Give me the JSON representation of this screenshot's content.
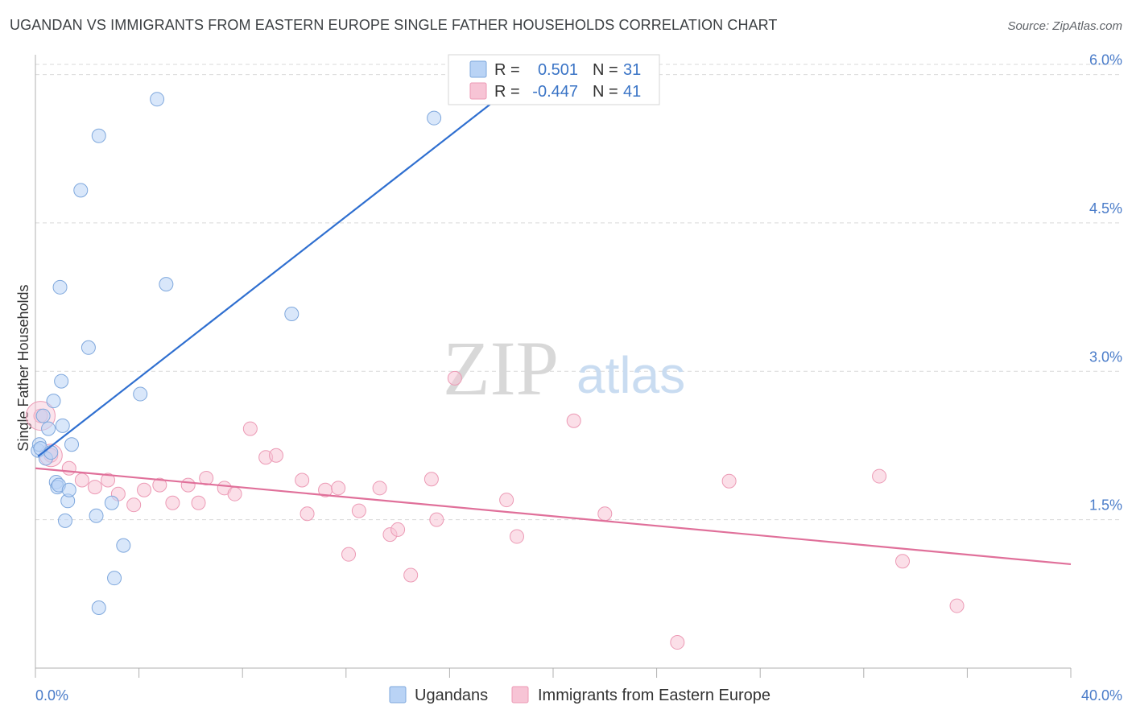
{
  "title": "UGANDAN VS IMMIGRANTS FROM EASTERN EUROPE SINGLE FATHER HOUSEHOLDS CORRELATION CHART",
  "source": "Source: ZipAtlas.com",
  "watermark": {
    "zip": "ZIP",
    "atlas": "atlas"
  },
  "colors": {
    "blue_fill": "#b9d3f5",
    "blue_stroke": "#7fa8dd",
    "blue_line": "#2f6fd0",
    "pink_fill": "#f7c4d5",
    "pink_stroke": "#ec9ab5",
    "pink_line": "#e0709a",
    "grid": "#d9d9d9",
    "axis": "#b0b0b0",
    "value_text": "#3a74c6"
  },
  "legend": {
    "rows": [
      {
        "r_label": "R =",
        "r_value": "0.501",
        "n_label": "N =",
        "n_value": "31"
      },
      {
        "r_label": "R =",
        "r_value": "-0.447",
        "n_label": "N =",
        "n_value": "41"
      }
    ]
  },
  "chart_data": {
    "type": "scatter",
    "title": "UGANDAN VS IMMIGRANTS FROM EASTERN EUROPE SINGLE FATHER HOUSEHOLDS CORRELATION CHART",
    "xlabel": "",
    "ylabel": "Single Father Households",
    "xlim": [
      0,
      40
    ],
    "ylim": [
      0.0,
      6.2
    ],
    "x_tick_labels": [
      "0.0%",
      "40.0%"
    ],
    "y_ticks": [
      {
        "value": 1.5,
        "label": "1.5%"
      },
      {
        "value": 3.0,
        "label": "3.0%"
      },
      {
        "value": 4.5,
        "label": "4.5%"
      },
      {
        "value": 6.0,
        "label": "6.0%"
      }
    ],
    "series": [
      {
        "name": "Ugandans",
        "color": "blue",
        "trend": {
          "x1": 0.1,
          "y1": 2.14,
          "x2": 18.8,
          "y2": 5.95
        },
        "points": [
          [
            0.1,
            2.2
          ],
          [
            0.15,
            2.26
          ],
          [
            0.2,
            2.22
          ],
          [
            0.3,
            2.55
          ],
          [
            0.4,
            2.12
          ],
          [
            0.5,
            2.42
          ],
          [
            0.6,
            2.18
          ],
          [
            0.7,
            2.7
          ],
          [
            0.8,
            1.88
          ],
          [
            0.85,
            1.83
          ],
          [
            0.9,
            1.85
          ],
          [
            0.95,
            3.85
          ],
          [
            1.0,
            2.9
          ],
          [
            1.05,
            2.45
          ],
          [
            1.15,
            1.49
          ],
          [
            1.25,
            1.69
          ],
          [
            1.3,
            1.8
          ],
          [
            1.4,
            2.26
          ],
          [
            1.75,
            4.83
          ],
          [
            2.05,
            3.24
          ],
          [
            2.35,
            1.54
          ],
          [
            2.45,
            5.38
          ],
          [
            2.45,
            0.61
          ],
          [
            2.95,
            1.67
          ],
          [
            3.05,
            0.91
          ],
          [
            3.4,
            1.24
          ],
          [
            4.05,
            2.77
          ],
          [
            4.7,
            5.75
          ],
          [
            5.05,
            3.88
          ],
          [
            9.9,
            3.58
          ],
          [
            15.4,
            5.56
          ]
        ]
      },
      {
        "name": "Immigrants from Eastern Europe",
        "color": "pink",
        "trend": {
          "x1": 0.0,
          "y1": 2.02,
          "x2": 40.0,
          "y2": 1.05
        },
        "points": [
          [
            0.2,
            2.55
          ],
          [
            0.6,
            2.15
          ],
          [
            1.3,
            2.02
          ],
          [
            1.8,
            1.9
          ],
          [
            2.3,
            1.83
          ],
          [
            2.8,
            1.9
          ],
          [
            3.2,
            1.76
          ],
          [
            3.8,
            1.65
          ],
          [
            4.2,
            1.8
          ],
          [
            4.8,
            1.85
          ],
          [
            5.3,
            1.67
          ],
          [
            5.9,
            1.85
          ],
          [
            6.3,
            1.67
          ],
          [
            6.6,
            1.92
          ],
          [
            7.3,
            1.82
          ],
          [
            7.7,
            1.76
          ],
          [
            8.3,
            2.42
          ],
          [
            8.9,
            2.13
          ],
          [
            9.3,
            2.15
          ],
          [
            10.3,
            1.9
          ],
          [
            10.5,
            1.56
          ],
          [
            11.2,
            1.8
          ],
          [
            11.7,
            1.82
          ],
          [
            12.1,
            1.15
          ],
          [
            12.5,
            1.59
          ],
          [
            13.3,
            1.82
          ],
          [
            13.7,
            1.35
          ],
          [
            14.0,
            1.4
          ],
          [
            14.5,
            0.94
          ],
          [
            15.3,
            1.91
          ],
          [
            15.5,
            1.5
          ],
          [
            16.2,
            2.93
          ],
          [
            18.2,
            1.7
          ],
          [
            18.6,
            1.33
          ],
          [
            20.8,
            2.5
          ],
          [
            22.0,
            1.56
          ],
          [
            24.8,
            0.26
          ],
          [
            26.8,
            1.89
          ],
          [
            32.6,
            1.94
          ],
          [
            33.5,
            1.08
          ],
          [
            35.6,
            0.63
          ]
        ]
      }
    ]
  }
}
